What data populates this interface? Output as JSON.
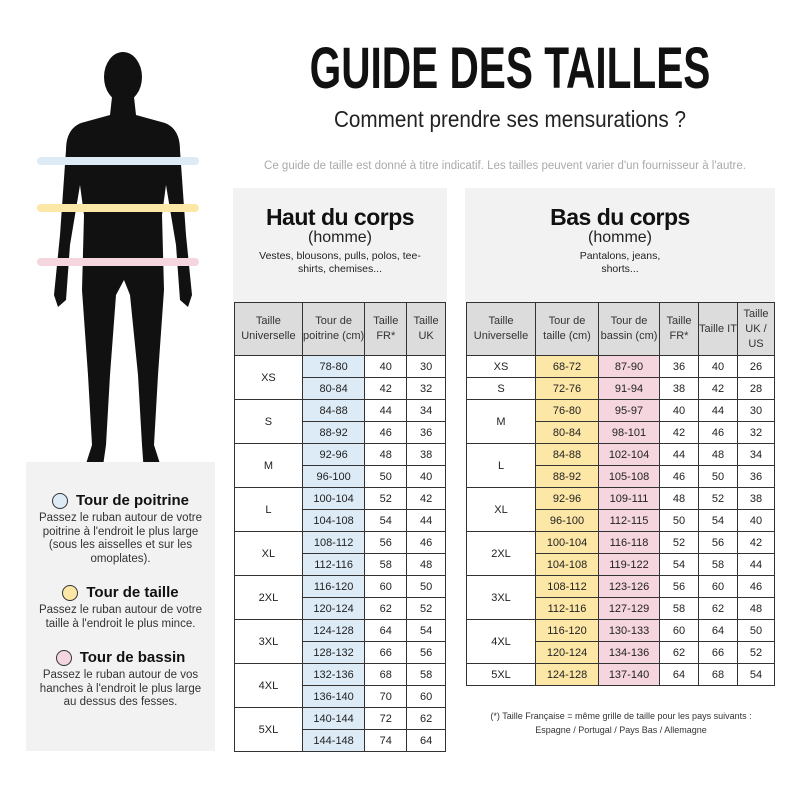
{
  "title": "GUIDE DES TAILLES",
  "subtitle": "Comment prendre ses mensurations ?",
  "note": "Ce guide de taille est donné à titre indicatif. Les tailles peuvent varier d'un fournisseur à l'autre.",
  "colors": {
    "poitrine": "#dcebf6",
    "taille": "#fde7a6",
    "bassin": "#f5d6de"
  },
  "legend": [
    {
      "title": "Tour de poitrine",
      "text": "Passez le ruban autour de votre poitrine à l'endroit le plus large (sous les aisselles et sur les omoplates)."
    },
    {
      "title": "Tour de taille",
      "text": "Passez le ruban autour de votre taille à l'endroit le plus mince."
    },
    {
      "title": "Tour de bassin",
      "text": "Passez le ruban autour de vos hanches à l'endroit le plus large au dessus des fesses."
    }
  ],
  "top": {
    "title": "Haut du corps",
    "sub": "(homme)",
    "desc": "Vestes, blousons, pulls, polos, tee-shirts, chemises...",
    "headers": [
      "Taille Universelle",
      "Tour de poitrine (cm)",
      "Taille FR*",
      "Taille UK"
    ],
    "groups": [
      {
        "size": "XS",
        "rows": [
          [
            "78-80",
            "40",
            "30"
          ],
          [
            "80-84",
            "42",
            "32"
          ]
        ]
      },
      {
        "size": "S",
        "rows": [
          [
            "84-88",
            "44",
            "34"
          ],
          [
            "88-92",
            "46",
            "36"
          ]
        ]
      },
      {
        "size": "M",
        "rows": [
          [
            "92-96",
            "48",
            "38"
          ],
          [
            "96-100",
            "50",
            "40"
          ]
        ]
      },
      {
        "size": "L",
        "rows": [
          [
            "100-104",
            "52",
            "42"
          ],
          [
            "104-108",
            "54",
            "44"
          ]
        ]
      },
      {
        "size": "XL",
        "rows": [
          [
            "108-112",
            "56",
            "46"
          ],
          [
            "112-116",
            "58",
            "48"
          ]
        ]
      },
      {
        "size": "2XL",
        "rows": [
          [
            "116-120",
            "60",
            "50"
          ],
          [
            "120-124",
            "62",
            "52"
          ]
        ]
      },
      {
        "size": "3XL",
        "rows": [
          [
            "124-128",
            "64",
            "54"
          ],
          [
            "128-132",
            "66",
            "56"
          ]
        ]
      },
      {
        "size": "4XL",
        "rows": [
          [
            "132-136",
            "68",
            "58"
          ],
          [
            "136-140",
            "70",
            "60"
          ]
        ]
      },
      {
        "size": "5XL",
        "rows": [
          [
            "140-144",
            "72",
            "62"
          ],
          [
            "144-148",
            "74",
            "64"
          ]
        ]
      }
    ]
  },
  "bottom": {
    "title": "Bas du corps",
    "sub": "(homme)",
    "desc": "Pantalons, jeans, shorts...",
    "headers": [
      "Taille Universelle",
      "Tour de taille (cm)",
      "Tour de bassin (cm)",
      "Taille FR*",
      "Taille IT",
      "Taille UK / US"
    ],
    "groups": [
      {
        "size": "XS",
        "rows": [
          [
            "68-72",
            "87-90",
            "36",
            "40",
            "26"
          ]
        ]
      },
      {
        "size": "S",
        "rows": [
          [
            "72-76",
            "91-94",
            "38",
            "42",
            "28"
          ]
        ]
      },
      {
        "size": "M",
        "rows": [
          [
            "76-80",
            "95-97",
            "40",
            "44",
            "30"
          ],
          [
            "80-84",
            "98-101",
            "42",
            "46",
            "32"
          ]
        ]
      },
      {
        "size": "L",
        "rows": [
          [
            "84-88",
            "102-104",
            "44",
            "48",
            "34"
          ],
          [
            "88-92",
            "105-108",
            "46",
            "50",
            "36"
          ]
        ]
      },
      {
        "size": "XL",
        "rows": [
          [
            "92-96",
            "109-111",
            "48",
            "52",
            "38"
          ],
          [
            "96-100",
            "112-115",
            "50",
            "54",
            "40"
          ]
        ]
      },
      {
        "size": "2XL",
        "rows": [
          [
            "100-104",
            "116-118",
            "52",
            "56",
            "42"
          ],
          [
            "104-108",
            "119-122",
            "54",
            "58",
            "44"
          ]
        ]
      },
      {
        "size": "3XL",
        "rows": [
          [
            "108-112",
            "123-126",
            "56",
            "60",
            "46"
          ],
          [
            "112-116",
            "127-129",
            "58",
            "62",
            "48"
          ]
        ]
      },
      {
        "size": "4XL",
        "rows": [
          [
            "116-120",
            "130-133",
            "60",
            "64",
            "50"
          ],
          [
            "120-124",
            "134-136",
            "62",
            "66",
            "52"
          ]
        ]
      },
      {
        "size": "5XL",
        "rows": [
          [
            "124-128",
            "137-140",
            "64",
            "68",
            "54"
          ]
        ]
      }
    ]
  },
  "footnote": "(*) Taille Française = même grille de taille pour les pays suivants : Espagne / Portugal / Pays Bas / Allemagne"
}
